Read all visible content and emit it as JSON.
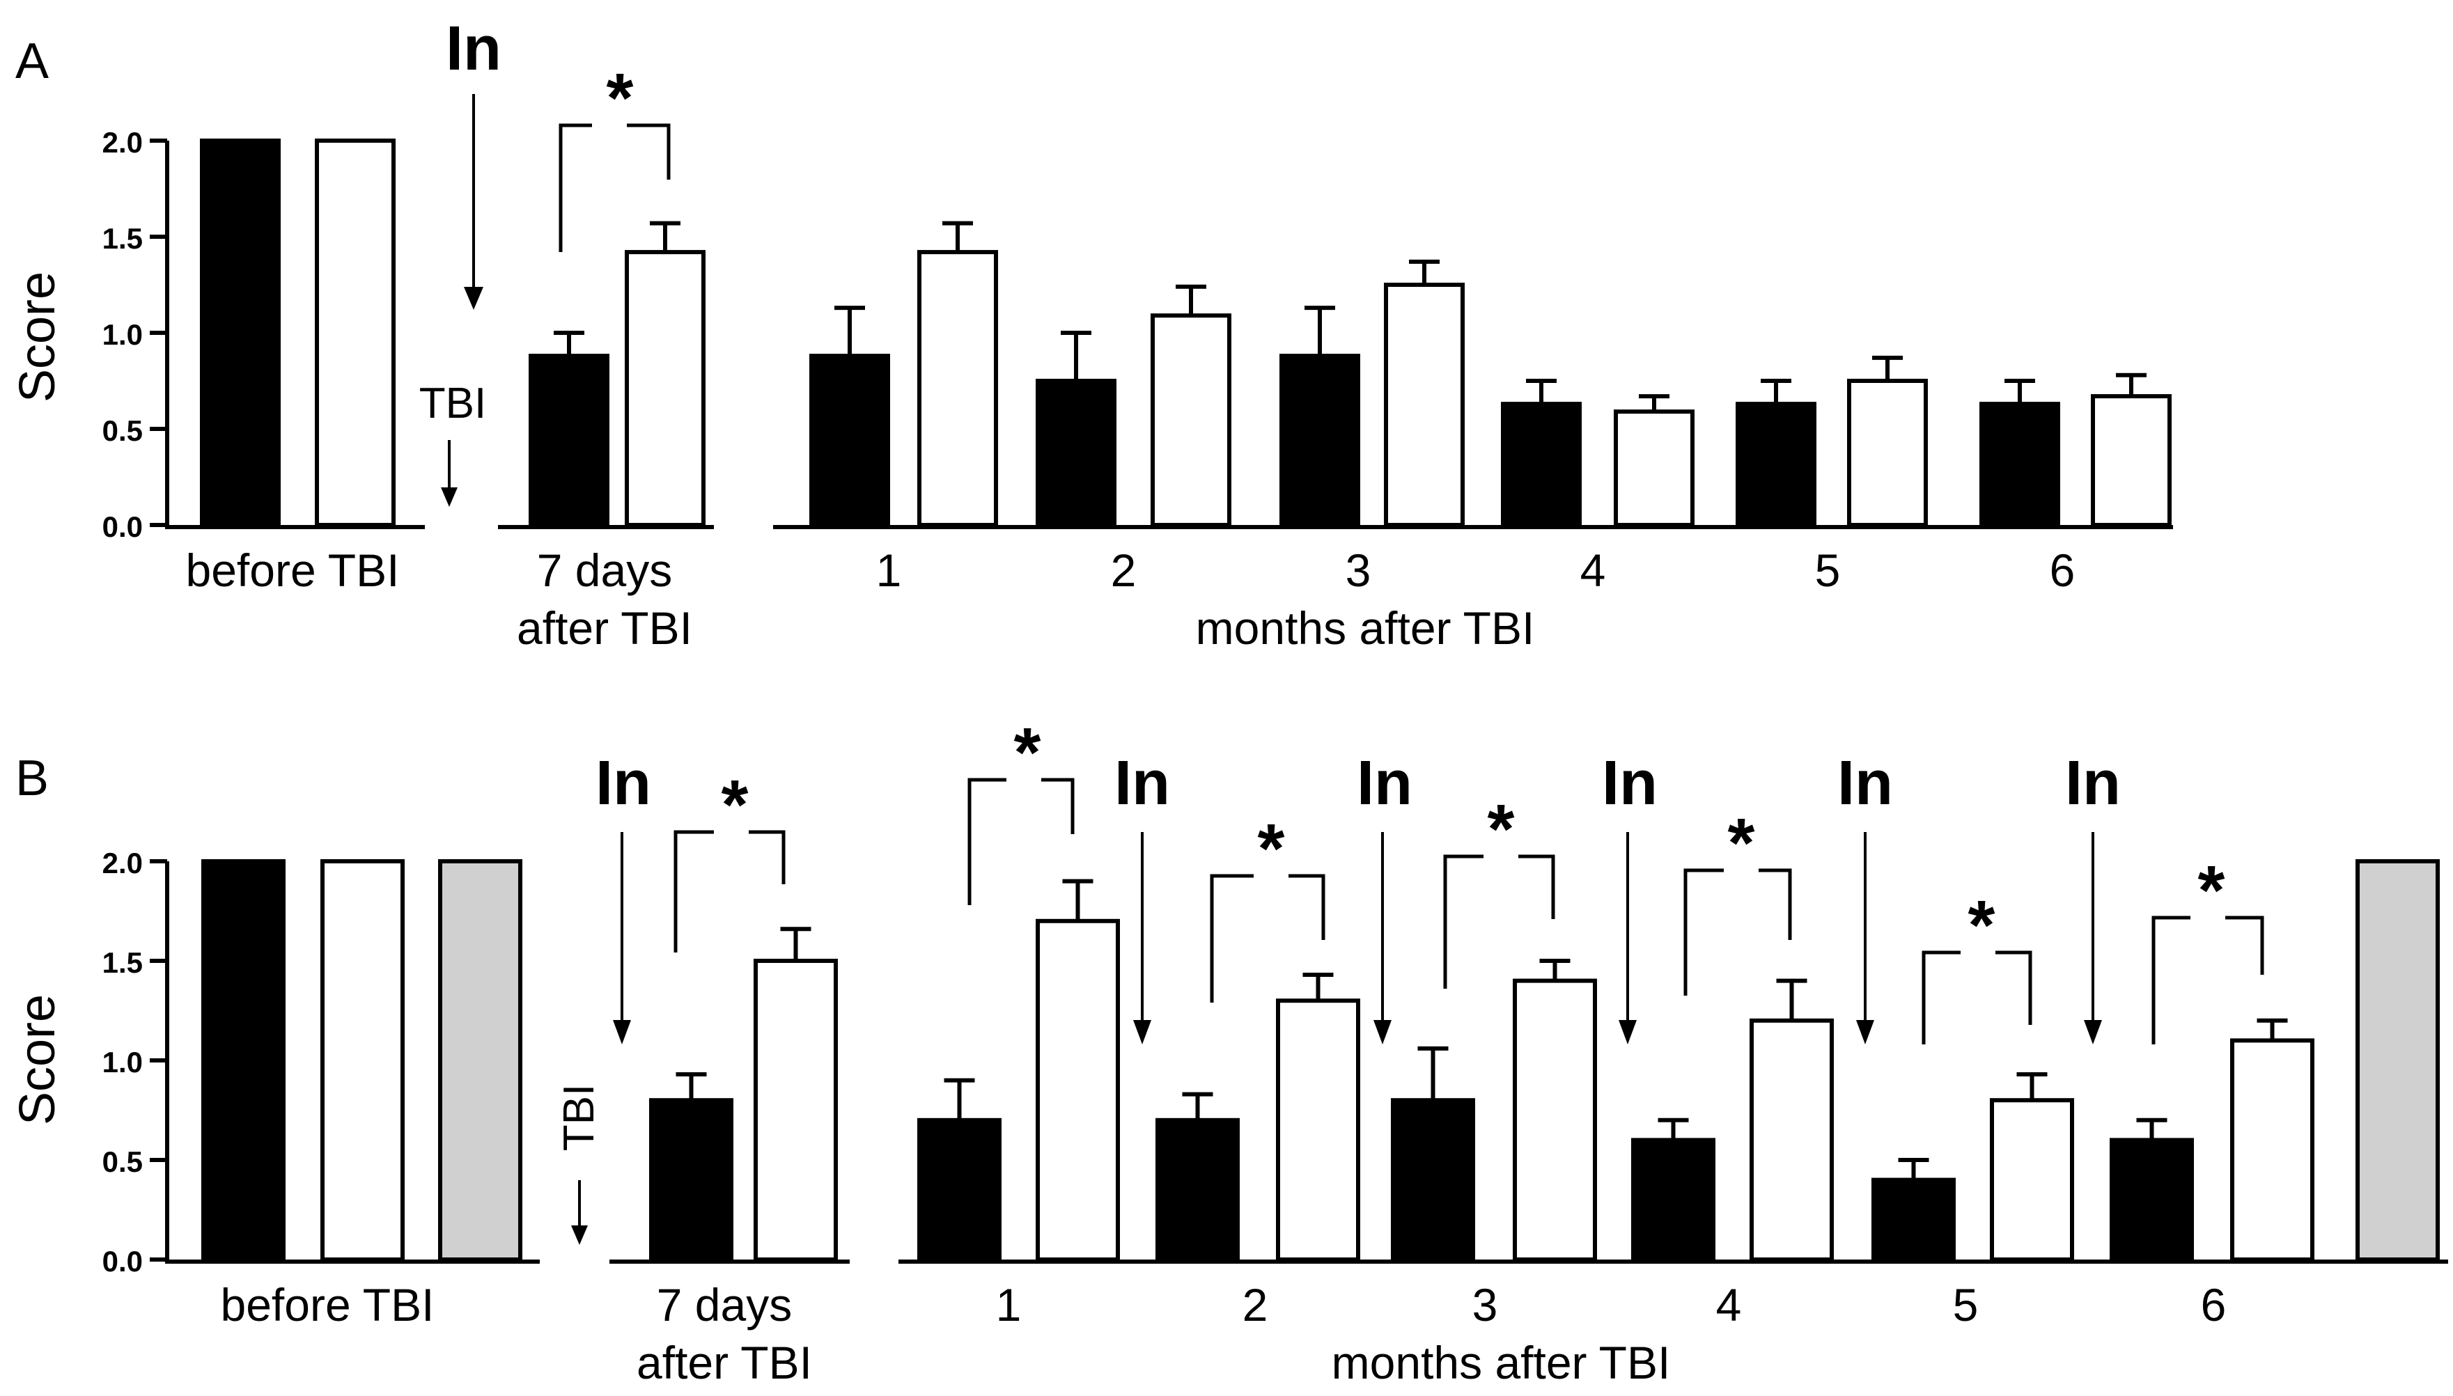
{
  "chart_data": [
    {
      "panel": "A",
      "type": "bar",
      "ylabel": "Score",
      "ylim": [
        0,
        2.0
      ],
      "yticks": [
        "0.0",
        "0.5",
        "1.0",
        "1.5",
        "2.0"
      ],
      "groups": [
        {
          "label": "before TBI",
          "bars": [
            {
              "color": "#000000",
              "value": 2.0,
              "err": 0
            },
            {
              "color": "#ffffff",
              "value": 2.0,
              "err": 0
            }
          ]
        },
        {
          "label": "7 days after TBI",
          "bars": [
            {
              "color": "#000000",
              "value": 0.88,
              "err": 0.12
            },
            {
              "color": "#ffffff",
              "value": 1.42,
              "err": 0.15
            }
          ],
          "significant": true
        },
        {
          "label": "1",
          "bars": [
            {
              "color": "#000000",
              "value": 0.88,
              "err": 0.25
            },
            {
              "color": "#ffffff",
              "value": 1.42,
              "err": 0.15
            }
          ]
        },
        {
          "label": "2",
          "bars": [
            {
              "color": "#000000",
              "value": 0.75,
              "err": 0.25
            },
            {
              "color": "#ffffff",
              "value": 1.09,
              "err": 0.15
            }
          ]
        },
        {
          "label": "3",
          "bars": [
            {
              "color": "#000000",
              "value": 0.88,
              "err": 0.25
            },
            {
              "color": "#ffffff",
              "value": 1.25,
              "err": 0.12
            }
          ]
        },
        {
          "label": "4",
          "bars": [
            {
              "color": "#000000",
              "value": 0.63,
              "err": 0.12
            },
            {
              "color": "#ffffff",
              "value": 0.59,
              "err": 0.08
            }
          ]
        },
        {
          "label": "5",
          "bars": [
            {
              "color": "#000000",
              "value": 0.63,
              "err": 0.12
            },
            {
              "color": "#ffffff",
              "value": 0.75,
              "err": 0.12
            }
          ]
        },
        {
          "label": "6",
          "bars": [
            {
              "color": "#000000",
              "value": 0.63,
              "err": 0.12
            },
            {
              "color": "#ffffff",
              "value": 0.67,
              "err": 0.11
            }
          ]
        }
      ],
      "group_axis_label": "months after TBI",
      "annotations": {
        "injection": "In",
        "injury": "TBI",
        "significance": "*"
      }
    },
    {
      "panel": "B",
      "type": "bar",
      "ylabel": "Score",
      "ylim": [
        0,
        2.0
      ],
      "yticks": [
        "0.0",
        "0.5",
        "1.0",
        "1.5",
        "2.0"
      ],
      "groups": [
        {
          "label": "before TBI",
          "bars": [
            {
              "color": "#000000",
              "value": 2.0,
              "err": 0
            },
            {
              "color": "#ffffff",
              "value": 2.0,
              "err": 0
            },
            {
              "color": "#d0d0d0",
              "value": 2.0,
              "err": 0
            }
          ]
        },
        {
          "label": "7 days after TBI",
          "bars": [
            {
              "color": "#000000",
              "value": 0.8,
              "err": 0.13
            },
            {
              "color": "#ffffff",
              "value": 1.5,
              "err": 0.16
            }
          ],
          "significant": true
        },
        {
          "label": "1",
          "bars": [
            {
              "color": "#000000",
              "value": 0.7,
              "err": 0.2
            },
            {
              "color": "#ffffff",
              "value": 1.7,
              "err": 0.2
            }
          ],
          "significant": true
        },
        {
          "label": "2",
          "bars": [
            {
              "color": "#000000",
              "value": 0.7,
              "err": 0.13
            },
            {
              "color": "#ffffff",
              "value": 1.3,
              "err": 0.13
            }
          ],
          "significant": true
        },
        {
          "label": "3",
          "bars": [
            {
              "color": "#000000",
              "value": 0.8,
              "err": 0.26
            },
            {
              "color": "#ffffff",
              "value": 1.4,
              "err": 0.1
            }
          ],
          "significant": true
        },
        {
          "label": "4",
          "bars": [
            {
              "color": "#000000",
              "value": 0.6,
              "err": 0.1
            },
            {
              "color": "#ffffff",
              "value": 1.2,
              "err": 0.2
            }
          ],
          "significant": true
        },
        {
          "label": "5",
          "bars": [
            {
              "color": "#000000",
              "value": 0.4,
              "err": 0.1
            },
            {
              "color": "#ffffff",
              "value": 0.8,
              "err": 0.13
            }
          ],
          "significant": true
        },
        {
          "label": "6",
          "bars": [
            {
              "color": "#000000",
              "value": 0.6,
              "err": 0.1
            },
            {
              "color": "#ffffff",
              "value": 1.1,
              "err": 0.1
            }
          ],
          "significant": true
        },
        {
          "label": "",
          "bars": [
            {
              "color": "#d0d0d0",
              "value": 2.0,
              "err": 0
            }
          ]
        }
      ],
      "group_axis_label": "months after TBI",
      "annotations": {
        "injection": "In",
        "injury": "TBI",
        "significance": "*"
      }
    }
  ]
}
